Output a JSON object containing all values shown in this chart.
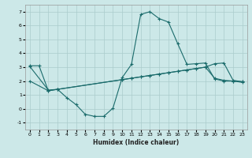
{
  "xlabel": "Humidex (Indice chaleur)",
  "bg_color": "#cce8e8",
  "grid_color": "#aacccc",
  "line_color": "#1a6b6b",
  "xlim": [
    -0.5,
    23.5
  ],
  "ylim": [
    -1.5,
    7.5
  ],
  "xticks": [
    0,
    1,
    2,
    3,
    4,
    5,
    6,
    7,
    8,
    9,
    10,
    11,
    12,
    13,
    14,
    15,
    16,
    17,
    18,
    19,
    20,
    21,
    22,
    23
  ],
  "yticks": [
    -1,
    0,
    1,
    2,
    3,
    4,
    5,
    6,
    7
  ],
  "line1_x": [
    0,
    1,
    2,
    3,
    4,
    5,
    6,
    7,
    8,
    9,
    10,
    11,
    12,
    13,
    14,
    15,
    16,
    17,
    18,
    19,
    20,
    21,
    22,
    23
  ],
  "line1_y": [
    3.1,
    3.1,
    1.3,
    1.4,
    0.8,
    0.3,
    -0.4,
    -0.55,
    -0.55,
    0.05,
    2.25,
    3.2,
    6.8,
    7.0,
    6.5,
    6.25,
    4.7,
    3.2,
    3.25,
    3.3,
    2.15,
    2.0,
    2.0,
    1.9
  ],
  "line2_x": [
    0,
    2,
    3,
    10,
    11,
    12,
    13,
    14,
    15,
    16,
    17,
    18,
    19,
    20,
    21,
    22,
    23
  ],
  "line2_y": [
    3.05,
    1.35,
    1.4,
    2.1,
    2.2,
    2.3,
    2.4,
    2.5,
    2.6,
    2.7,
    2.8,
    2.9,
    3.0,
    3.25,
    3.3,
    2.05,
    1.95
  ],
  "line3_x": [
    0,
    2,
    3,
    10,
    11,
    12,
    13,
    14,
    15,
    16,
    17,
    18,
    19,
    20,
    21,
    22,
    23
  ],
  "line3_y": [
    2.0,
    1.3,
    1.4,
    2.1,
    2.2,
    2.3,
    2.4,
    2.5,
    2.6,
    2.7,
    2.8,
    2.9,
    3.0,
    2.2,
    2.05,
    2.0,
    1.95
  ]
}
